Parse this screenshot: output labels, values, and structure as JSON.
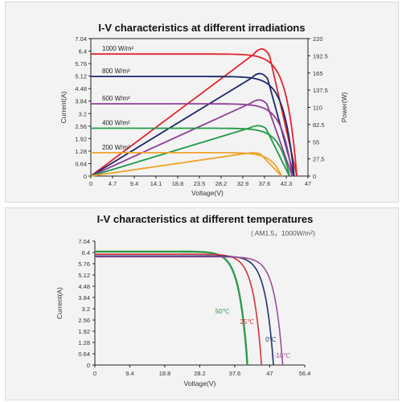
{
  "colors": {
    "background": "#f3f3f3",
    "axis": "#222222",
    "c1000": "#e0262c",
    "c800": "#1b2a6b",
    "c600": "#8f3f97",
    "c400": "#1f9a45",
    "c200": "#f0a32a",
    "t50": "#2f9a4a",
    "t25": "#d2333a",
    "t0": "#24306e",
    "tm10": "#9a4f96"
  },
  "chart_data": [
    {
      "type": "line",
      "title": "I-V characteristics at different irradiations",
      "xlabel": "Voltage(V)",
      "ylabel": "Current(A)",
      "y2label": "Power(W)",
      "xlim": [
        0,
        47
      ],
      "ylim": [
        0,
        7.04
      ],
      "y2lim": [
        0,
        220
      ],
      "x_ticks": [
        "0",
        "4.7",
        "9.4",
        "14.1",
        "18.8",
        "23.5",
        "28.2",
        "32.9",
        "37.6",
        "42.3",
        "47"
      ],
      "y_ticks": [
        "0",
        "0.64",
        "1.28",
        "1.92",
        "2.56",
        "3.2",
        "3.84",
        "4.48",
        "5.12",
        "5.76",
        "6.4",
        "7.04"
      ],
      "y2_ticks": [
        "0",
        "27.5",
        "55",
        "82.5",
        "110",
        "137.5",
        "165",
        "192.5",
        "220"
      ],
      "grid": false,
      "series": [
        {
          "name": "1000 W/m²",
          "color_key": "c1000",
          "isc": 6.25,
          "voc": 44.6,
          "pmax": 207,
          "vmp": 37.2
        },
        {
          "name": "800 W/m²",
          "color_key": "c800",
          "isc": 5.1,
          "voc": 44.0,
          "pmax": 167,
          "vmp": 36.8
        },
        {
          "name": "600 W/m²",
          "color_key": "c600",
          "isc": 3.7,
          "voc": 43.6,
          "pmax": 124,
          "vmp": 36.6
        },
        {
          "name": "400 W/m²",
          "color_key": "c400",
          "isc": 2.45,
          "voc": 43.0,
          "pmax": 82,
          "vmp": 36.4
        },
        {
          "name": "200 W/m²",
          "color_key": "c200",
          "isc": 1.2,
          "voc": 41.3,
          "pmax": 38,
          "vmp": 35.2
        }
      ]
    },
    {
      "type": "line",
      "title": "I-V characteristics at different temperatures",
      "subtitle": "( AM1.5，1000W/m²)",
      "xlabel": "Voltage(V)",
      "ylabel": "Current(A)",
      "xlim": [
        0,
        56.4
      ],
      "ylim": [
        0,
        7.04
      ],
      "x_ticks": [
        "0",
        "9.4",
        "18.8",
        "28.2",
        "37.6",
        "47",
        "56.4"
      ],
      "y_ticks": [
        "0",
        "0.64",
        "1.28",
        "1.92",
        "2.56",
        "3.2",
        "3.84",
        "4.48",
        "5.12",
        "5.76",
        "6.4",
        "7.04"
      ],
      "grid": false,
      "series": [
        {
          "name": "50℃",
          "color_key": "t50",
          "isc": 6.45,
          "voc": 41.0
        },
        {
          "name": "25℃",
          "color_key": "t25",
          "isc": 6.3,
          "voc": 44.8
        },
        {
          "name": "0℃",
          "color_key": "t0",
          "isc": 6.2,
          "voc": 48.0
        },
        {
          "name": "-10℃",
          "color_key": "tm10",
          "isc": 6.15,
          "voc": 50.5
        }
      ]
    }
  ]
}
